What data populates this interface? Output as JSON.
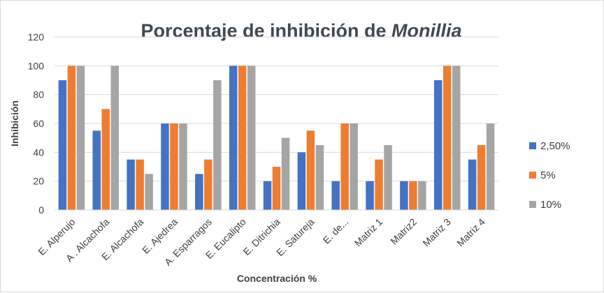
{
  "chart_data": {
    "type": "bar",
    "title_main": "Porcentaje de inhibición de ",
    "title_italic": "Monillia",
    "xlabel": "Concentración %",
    "ylabel": "Inhibición",
    "ylim": [
      0,
      120
    ],
    "yticks": [
      "0",
      "20",
      "40",
      "60",
      "80",
      "100",
      "120"
    ],
    "grid": true,
    "legend_position": "right",
    "categories": [
      "E. Alperujo",
      "A . Alcachofa",
      "E. Alcachofa",
      "E. Ajedrea",
      "A. Esparragos",
      "E. Eucalipto",
      "E. Ditrichia",
      "E. Satureja",
      "E. de...",
      "Matriz 1",
      "Matriz2",
      "Matriz 3",
      "Matriz 4"
    ],
    "series": [
      {
        "name": "2,50%",
        "color": "#4472c4",
        "values": [
          90,
          55,
          35,
          60,
          25,
          100,
          20,
          40,
          20,
          20,
          20,
          90,
          35
        ]
      },
      {
        "name": "5%",
        "color": "#ed7d31",
        "values": [
          100,
          70,
          35,
          60,
          35,
          100,
          30,
          55,
          60,
          35,
          20,
          100,
          45
        ]
      },
      {
        "name": "10%",
        "color": "#a5a5a5",
        "values": [
          100,
          100,
          25,
          60,
          90,
          100,
          50,
          45,
          60,
          45,
          20,
          100,
          60
        ]
      }
    ]
  }
}
